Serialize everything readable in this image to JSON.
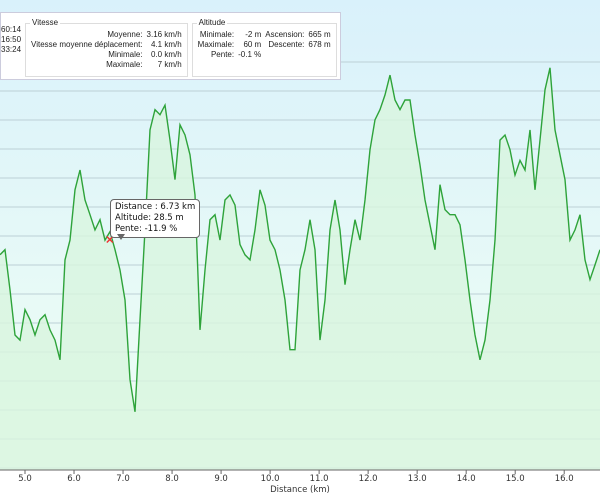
{
  "stats": {
    "left_values": [
      "60:14",
      "16:50",
      "33:24"
    ],
    "vitesse": {
      "title": "Vitesse",
      "rows": [
        [
          "Moyenne:",
          "3.16 km/h"
        ],
        [
          "Vitesse moyenne déplacement:",
          "4.1 km/h"
        ],
        [
          "Minimale:",
          "0.0 km/h"
        ],
        [
          "Maximale:",
          "7 km/h"
        ]
      ]
    },
    "altitude": {
      "title": "Altitude",
      "minimale_label": "Minimale:",
      "minimale": "-2 m",
      "maximale_label": "Maximale:",
      "maximale": "60 m",
      "pente_label": "Pente:",
      "pente": "-0.1 %",
      "ascension_label": "Ascension:",
      "ascension": "665 m",
      "descente_label": "Descente:",
      "descente": "678 m"
    }
  },
  "tooltip": {
    "distance": "Distance : 6.73 km",
    "altitude": "Altitude: 28.5 m",
    "pente": "Pente: -11.9 %",
    "point_km": 6.73,
    "point_alt": 28.5
  },
  "colors": {
    "line": "#2ea33a",
    "fill": "#d8f5df",
    "bg_top": "#d9f1fb",
    "bg_bottom": "#f0fff4"
  },
  "chart_data": {
    "type": "area",
    "xlabel": "Distance  (km)",
    "ylabel": "",
    "xticks": [
      "5.0",
      "6.0",
      "7.0",
      "8.0",
      "9.0",
      "10.0",
      "11.0",
      "12.0",
      "13.0",
      "14.0",
      "15.0",
      "16.0"
    ],
    "xlim": [
      4.49,
      16.73
    ],
    "ylim": [
      -12.3,
      70.9
    ],
    "x_start": 4.49,
    "x_step": 0.102,
    "altitude_m": [
      25.8,
      26.7,
      19.6,
      11.6,
      10.7,
      16.1,
      14.3,
      11.6,
      14.3,
      15.2,
      12.5,
      10.7,
      7.2,
      24.9,
      28.4,
      37.3,
      40.8,
      35.5,
      32.9,
      30.2,
      32.0,
      28.4,
      29.9,
      26.7,
      23.1,
      17.8,
      3.7,
      -2,
      14.3,
      30.2,
      47.9,
      51.5,
      50.6,
      52.3,
      46.1,
      39.1,
      48.8,
      47.0,
      43.5,
      36.4,
      12.5,
      23.1,
      32.0,
      32.9,
      28.4,
      35.5,
      36.4,
      34.6,
      27.6,
      25.8,
      24.9,
      30.2,
      37.3,
      34.6,
      28.4,
      26.7,
      23.1,
      17.8,
      9.0,
      9.0,
      23.1,
      26.7,
      32.0,
      26.7,
      10.7,
      17.8,
      30.2,
      35.5,
      30.2,
      20.5,
      26.7,
      32.0,
      28.4,
      35.5,
      44.4,
      49.7,
      51.5,
      54.1,
      57.6,
      53.2,
      51.5,
      53.2,
      53.2,
      47.0,
      41.7,
      35.5,
      31.1,
      26.7,
      38.2,
      33.8,
      32.9,
      32.9,
      31.1,
      24.9,
      17.8,
      11.6,
      7.2,
      10.7,
      17.8,
      28.4,
      46.1,
      47.0,
      44.4,
      39.9,
      42.5,
      40.8,
      47.9,
      37.3,
      46.1,
      55.0,
      58.9,
      47.9,
      43.5,
      39.1,
      28.4,
      30.2,
      32.9,
      24.9,
      21.4,
      24.0,
      26.7
    ]
  }
}
